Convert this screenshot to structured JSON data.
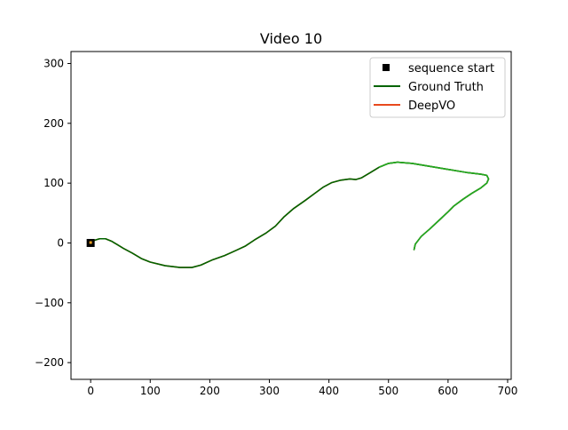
{
  "chart_data": {
    "type": "line",
    "title": "Video 10",
    "xlabel": "",
    "ylabel": "",
    "xlim": [
      -33,
      706
    ],
    "ylim": [
      -228,
      320
    ],
    "xticks": [
      0,
      100,
      200,
      300,
      400,
      500,
      600,
      700
    ],
    "yticks": [
      -200,
      -100,
      0,
      100,
      200,
      300
    ],
    "xtick_labels": [
      "0",
      "100",
      "200",
      "300",
      "400",
      "500",
      "600",
      "700"
    ],
    "ytick_labels": [
      "−200",
      "−100",
      "0",
      "100",
      "200",
      "300"
    ],
    "grid": false,
    "legend_position": "top-right",
    "legend": [
      {
        "label": "sequence start",
        "marker": "square",
        "color": "#000000"
      },
      {
        "label": "Ground Truth",
        "marker": "line",
        "color": "#006400"
      },
      {
        "label": "DeepVO",
        "marker": "line",
        "color": "#e8491d"
      }
    ],
    "start_point": {
      "x": 0,
      "y": 0
    },
    "series": [
      {
        "name": "Ground Truth",
        "color": "#006400",
        "points": [
          [
            0,
            0
          ],
          [
            5,
            4
          ],
          [
            15,
            7
          ],
          [
            25,
            7
          ],
          [
            35,
            3
          ],
          [
            45,
            -3
          ],
          [
            55,
            -9
          ],
          [
            70,
            -17
          ],
          [
            85,
            -26
          ],
          [
            100,
            -32
          ],
          [
            125,
            -38
          ],
          [
            150,
            -41
          ],
          [
            170,
            -41
          ],
          [
            185,
            -37
          ],
          [
            205,
            -28
          ],
          [
            225,
            -21
          ],
          [
            245,
            -12
          ],
          [
            260,
            -5
          ],
          [
            275,
            5
          ],
          [
            295,
            17
          ],
          [
            310,
            28
          ],
          [
            325,
            44
          ],
          [
            340,
            57
          ],
          [
            360,
            71
          ],
          [
            375,
            82
          ],
          [
            390,
            93
          ],
          [
            405,
            101
          ],
          [
            420,
            105
          ],
          [
            435,
            107
          ],
          [
            445,
            106
          ],
          [
            455,
            109
          ],
          [
            470,
            118
          ],
          [
            485,
            127
          ],
          [
            500,
            133
          ],
          [
            515,
            135
          ],
          [
            540,
            133
          ],
          [
            570,
            128
          ],
          [
            600,
            123
          ],
          [
            630,
            118
          ],
          [
            655,
            115
          ],
          [
            665,
            113
          ],
          [
            668,
            107
          ],
          [
            665,
            100
          ],
          [
            655,
            92
          ],
          [
            640,
            83
          ],
          [
            625,
            73
          ],
          [
            610,
            62
          ],
          [
            600,
            52
          ],
          [
            585,
            38
          ],
          [
            570,
            24
          ],
          [
            555,
            11
          ],
          [
            545,
            -2
          ],
          [
            543,
            -11
          ]
        ]
      },
      {
        "name": "DeepVO",
        "color": "#e8491d",
        "points": [
          [
            0,
            0
          ],
          [
            5,
            4
          ],
          [
            15,
            7
          ],
          [
            25,
            7
          ],
          [
            35,
            3
          ],
          [
            45,
            -3
          ],
          [
            55,
            -9
          ],
          [
            70,
            -17
          ],
          [
            85,
            -26
          ],
          [
            100,
            -32
          ],
          [
            125,
            -38
          ],
          [
            150,
            -41
          ],
          [
            170,
            -41
          ],
          [
            185,
            -37
          ],
          [
            205,
            -28
          ],
          [
            225,
            -21
          ],
          [
            245,
            -12
          ],
          [
            260,
            -5
          ],
          [
            275,
            5
          ],
          [
            295,
            17
          ],
          [
            310,
            28
          ],
          [
            325,
            44
          ],
          [
            340,
            57
          ],
          [
            360,
            71
          ],
          [
            375,
            82
          ],
          [
            390,
            93
          ],
          [
            405,
            101
          ],
          [
            420,
            105
          ],
          [
            435,
            107
          ],
          [
            445,
            106
          ],
          [
            455,
            109
          ],
          [
            470,
            118
          ],
          [
            485,
            127
          ],
          [
            500,
            133
          ],
          [
            515,
            135
          ],
          [
            540,
            133
          ],
          [
            570,
            128
          ],
          [
            600,
            123
          ],
          [
            630,
            118
          ],
          [
            655,
            115
          ],
          [
            665,
            113
          ],
          [
            668,
            107
          ],
          [
            665,
            100
          ],
          [
            655,
            92
          ],
          [
            640,
            83
          ],
          [
            625,
            73
          ],
          [
            610,
            62
          ],
          [
            600,
            52
          ],
          [
            585,
            38
          ],
          [
            570,
            24
          ],
          [
            555,
            11
          ],
          [
            545,
            -2
          ],
          [
            543,
            -11
          ]
        ]
      }
    ]
  }
}
